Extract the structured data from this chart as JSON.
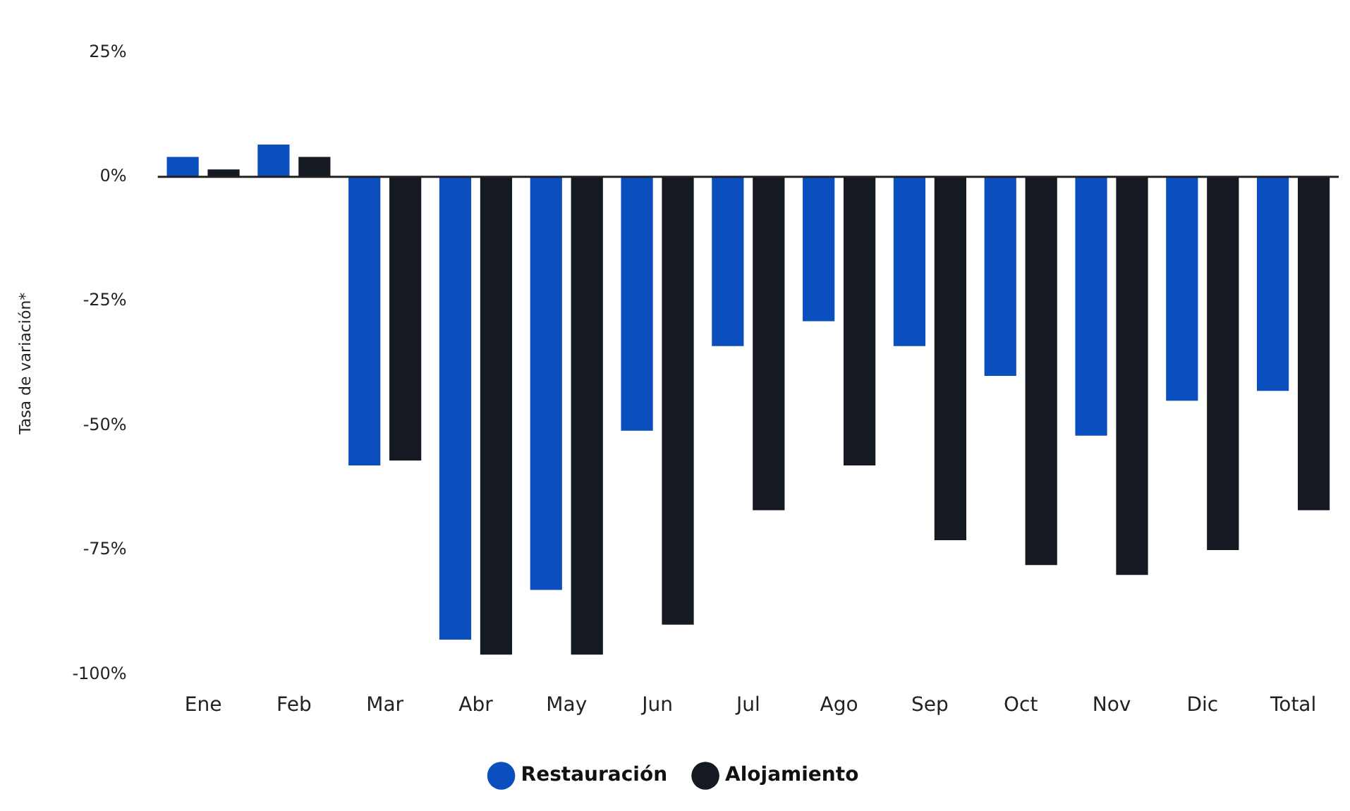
{
  "chart_data": {
    "type": "bar",
    "ylabel": "Tasa de variación*",
    "categories": [
      "Ene",
      "Feb",
      "Mar",
      "Abr",
      "May",
      "Jun",
      "Jul",
      "Ago",
      "Sep",
      "Oct",
      "Nov",
      "Dic",
      "Total"
    ],
    "series": [
      {
        "name": "Restauración",
        "color": "#0b4fbf",
        "values": [
          4,
          6.5,
          -58,
          -93,
          -83,
          -51,
          -34,
          -29,
          -34,
          -40,
          -52,
          -45,
          -43
        ]
      },
      {
        "name": "Alojamiento",
        "color": "#151a22",
        "values": [
          1.5,
          4,
          -57,
          -96,
          -96,
          -90,
          -67,
          -58,
          -73,
          -78,
          -80,
          -75,
          -67
        ]
      }
    ],
    "ylim": [
      -100,
      25
    ],
    "yticks": [
      {
        "value": -100,
        "label": "-100%"
      },
      {
        "value": -75,
        "label": "-75%"
      },
      {
        "value": -50,
        "label": "-50%"
      },
      {
        "value": -25,
        "label": "-25%"
      },
      {
        "value": 0,
        "label": "0%"
      },
      {
        "value": 25,
        "label": "25%"
      }
    ],
    "ref_lines": [
      {
        "axis": "y",
        "value": 0,
        "color": "#222222"
      }
    ],
    "grid": false,
    "legend": "bottom"
  }
}
